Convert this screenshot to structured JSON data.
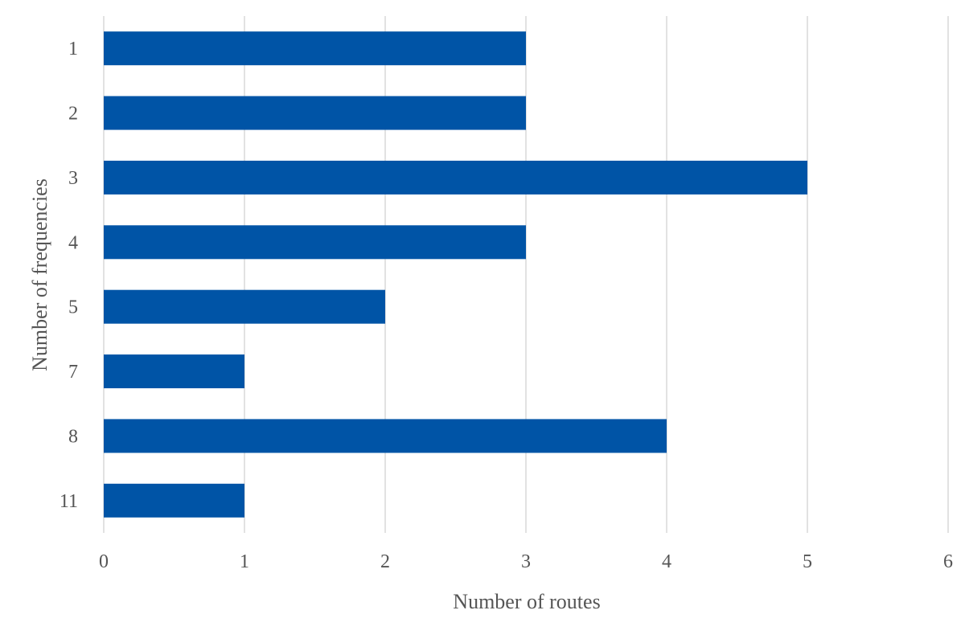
{
  "chart_data": {
    "type": "bar",
    "orientation": "horizontal",
    "categories": [
      "1",
      "2",
      "3",
      "4",
      "5",
      "7",
      "8",
      "11"
    ],
    "values": [
      3,
      3,
      5,
      3,
      2,
      1,
      4,
      1
    ],
    "xlabel": "Number of routes",
    "ylabel": "Number of frequencies",
    "xlim": [
      0,
      6
    ],
    "xticks": [
      "0",
      "1",
      "2",
      "3",
      "4",
      "5",
      "6"
    ],
    "grid": "vertical",
    "legend": "none",
    "bar_color": "#0054a6",
    "grid_color": "#d9d9d9",
    "text_color": "#555555"
  }
}
